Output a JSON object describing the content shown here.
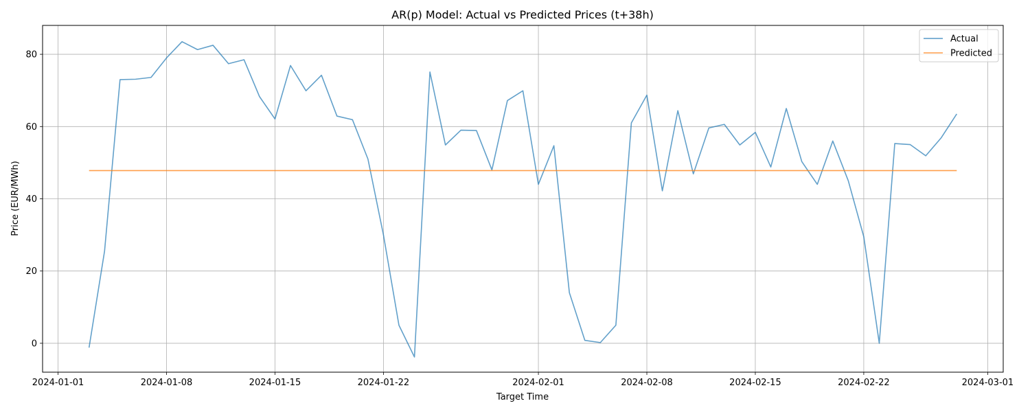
{
  "chart_data": {
    "type": "line",
    "title": "AR(p) Model: Actual vs Predicted Prices (t+38h)",
    "xlabel": "Target Time",
    "ylabel": "Price (EUR/MWh)",
    "x_ticks": [
      "2024-01-01",
      "2024-01-08",
      "2024-01-15",
      "2024-01-22",
      "2024-02-01",
      "2024-02-08",
      "2024-02-15",
      "2024-02-22",
      "2024-03-01"
    ],
    "y_ticks": [
      "0",
      "20",
      "40",
      "60",
      "80"
    ],
    "xlim": [
      "2023-12-31",
      "2024-03-02"
    ],
    "ylim": [
      -8,
      88
    ],
    "grid": true,
    "legend_position": "top-right",
    "series": [
      {
        "name": "Actual",
        "color": "#1f77b4",
        "values": [
          [
            "2024-01-03",
            -1.2
          ],
          [
            "2024-01-04",
            25.5
          ],
          [
            "2024-01-05",
            73.0
          ],
          [
            "2024-01-06",
            73.1
          ],
          [
            "2024-01-07",
            73.6
          ],
          [
            "2024-01-08",
            79.0
          ],
          [
            "2024-01-09",
            83.5
          ],
          [
            "2024-01-10",
            81.3
          ],
          [
            "2024-01-11",
            82.5
          ],
          [
            "2024-01-12",
            77.4
          ],
          [
            "2024-01-13",
            78.5
          ],
          [
            "2024-01-14",
            68.3
          ],
          [
            "2024-01-15",
            62.1
          ],
          [
            "2024-01-16",
            76.9
          ],
          [
            "2024-01-17",
            69.9
          ],
          [
            "2024-01-18",
            74.2
          ],
          [
            "2024-01-19",
            62.9
          ],
          [
            "2024-01-20",
            61.9
          ],
          [
            "2024-01-21",
            51.0
          ],
          [
            "2024-01-22",
            30.0
          ],
          [
            "2024-01-23",
            5.0
          ],
          [
            "2024-01-24",
            -3.8
          ],
          [
            "2024-01-25",
            75.1
          ],
          [
            "2024-01-26",
            54.9
          ],
          [
            "2024-01-27",
            59.0
          ],
          [
            "2024-01-28",
            58.9
          ],
          [
            "2024-01-29",
            48.0
          ],
          [
            "2024-01-30",
            67.2
          ],
          [
            "2024-01-31",
            69.9
          ],
          [
            "2024-02-01",
            44.0
          ],
          [
            "2024-02-02",
            54.7
          ],
          [
            "2024-02-03",
            14.0
          ],
          [
            "2024-02-04",
            0.8
          ],
          [
            "2024-02-05",
            0.2
          ],
          [
            "2024-02-06",
            5.0
          ],
          [
            "2024-02-07",
            61.0
          ],
          [
            "2024-02-08",
            68.7
          ],
          [
            "2024-02-09",
            42.2
          ],
          [
            "2024-02-10",
            64.4
          ],
          [
            "2024-02-11",
            46.9
          ],
          [
            "2024-02-12",
            59.6
          ],
          [
            "2024-02-13",
            60.6
          ],
          [
            "2024-02-14",
            54.9
          ],
          [
            "2024-02-15",
            58.4
          ],
          [
            "2024-02-16",
            48.8
          ],
          [
            "2024-02-17",
            65.0
          ],
          [
            "2024-02-18",
            50.3
          ],
          [
            "2024-02-19",
            44.0
          ],
          [
            "2024-02-20",
            56.0
          ],
          [
            "2024-02-21",
            45.0
          ],
          [
            "2024-02-22",
            29.5
          ],
          [
            "2024-02-23",
            0.0
          ],
          [
            "2024-02-24",
            55.3
          ],
          [
            "2024-02-25",
            55.0
          ],
          [
            "2024-02-26",
            51.9
          ],
          [
            "2024-02-27",
            56.9
          ],
          [
            "2024-02-28",
            63.5
          ]
        ]
      },
      {
        "name": "Predicted",
        "color": "#ff7f0e",
        "values": [
          [
            "2024-01-03",
            47.8
          ],
          [
            "2024-02-28",
            47.8
          ]
        ]
      }
    ]
  }
}
